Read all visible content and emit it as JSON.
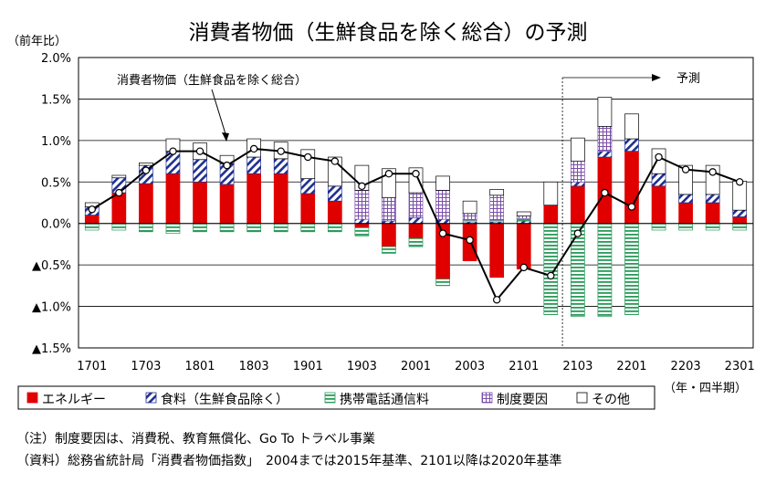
{
  "title": "消費者物価（生鮮食品を除く総合）の予測",
  "chart_data": {
    "type": "bar",
    "stacked": true,
    "ylabel": "（前年比）",
    "xlabel": "（年・四半期）",
    "ylim": [
      -1.5,
      2.0
    ],
    "yticks": [
      2.0,
      1.5,
      1.0,
      0.5,
      0.0,
      -0.5,
      -1.0,
      -1.5
    ],
    "ytick_labels": [
      "2.0%",
      "1.5%",
      "1.0%",
      "0.5%",
      "0.0%",
      "▲0.5%",
      "▲1.0%",
      "▲1.5%"
    ],
    "categories": [
      "1701",
      "1702",
      "1703",
      "1704",
      "1801",
      "1802",
      "1803",
      "1804",
      "1901",
      "1902",
      "1903",
      "1904",
      "2001",
      "2002",
      "2003",
      "2004",
      "2101",
      "2102",
      "2103",
      "2104",
      "2201",
      "2202",
      "2203",
      "2204",
      "2301"
    ],
    "xtick_labels": [
      "1701",
      "1703",
      "1801",
      "1803",
      "1901",
      "1903",
      "2001",
      "2003",
      "2101",
      "2103",
      "2201",
      "2203",
      "2301"
    ],
    "series": [
      {
        "name": "エネルギー",
        "color": "#e00000",
        "pattern": "solid",
        "values": [
          0.1,
          0.37,
          0.48,
          0.6,
          0.5,
          0.47,
          0.6,
          0.6,
          0.36,
          0.27,
          -0.05,
          -0.28,
          -0.18,
          -0.67,
          -0.45,
          -0.65,
          -0.55,
          0.22,
          0.45,
          0.8,
          0.87,
          0.45,
          0.25,
          0.25,
          0.08
        ]
      },
      {
        "name": "食料（生鮮食品除く）",
        "color": "#1f2f8f",
        "pattern": "diagonal",
        "values": [
          0.1,
          0.18,
          0.22,
          0.27,
          0.27,
          0.25,
          0.2,
          0.18,
          0.18,
          0.18,
          0.05,
          0.03,
          0.07,
          0.05,
          0.02,
          0.02,
          0.03,
          0.0,
          0.05,
          0.07,
          0.15,
          0.15,
          0.1,
          0.1,
          0.08
        ]
      },
      {
        "name": "携帯電話通信料",
        "color": "#2a9a5a",
        "pattern": "hstripes",
        "values": [
          -0.08,
          -0.08,
          -0.1,
          -0.12,
          -0.1,
          -0.1,
          -0.1,
          -0.1,
          -0.1,
          -0.1,
          -0.1,
          -0.08,
          -0.1,
          -0.08,
          0.02,
          0.02,
          0.03,
          -1.1,
          -1.12,
          -1.12,
          -1.1,
          -0.08,
          -0.08,
          -0.08,
          -0.08
        ]
      },
      {
        "name": "制度要因",
        "color": "#7b4fa8",
        "pattern": "grid",
        "values": [
          0.0,
          0.0,
          0.0,
          0.0,
          0.0,
          0.0,
          0.0,
          0.0,
          0.0,
          0.0,
          0.35,
          0.28,
          0.3,
          0.35,
          0.08,
          0.3,
          0.03,
          0.0,
          0.25,
          0.3,
          0.0,
          0.0,
          0.0,
          0.0,
          0.0
        ]
      },
      {
        "name": "その他",
        "color": "#ffffff",
        "pattern": "empty",
        "values": [
          0.05,
          0.03,
          0.03,
          0.15,
          0.2,
          0.1,
          0.22,
          0.2,
          0.35,
          0.35,
          0.3,
          0.35,
          0.3,
          0.17,
          0.15,
          0.07,
          0.05,
          0.28,
          0.28,
          0.35,
          0.3,
          0.3,
          0.35,
          0.35,
          0.35
        ]
      }
    ],
    "line": {
      "name": "消費者物価（生鮮食品を除く総合）",
      "values": [
        0.17,
        0.37,
        0.64,
        0.87,
        0.87,
        0.7,
        0.9,
        0.87,
        0.8,
        0.75,
        0.45,
        0.6,
        0.6,
        -0.12,
        -0.2,
        -0.92,
        -0.53,
        -0.63,
        -0.12,
        0.37,
        0.2,
        0.8,
        0.65,
        0.62,
        0.5
      ]
    },
    "annotations": {
      "line_label": "消費者物価（生鮮食品を除く総合）",
      "forecast_label": "予測",
      "forecast_start": "2103"
    },
    "legend": "bottom"
  },
  "notes": [
    "（注）制度要因は、消費税、教育無償化、Go To トラベル事業",
    "（資料）総務省統計局「消費者物価指数」　2004までは2015年基準、2101以降は2020年基準"
  ]
}
